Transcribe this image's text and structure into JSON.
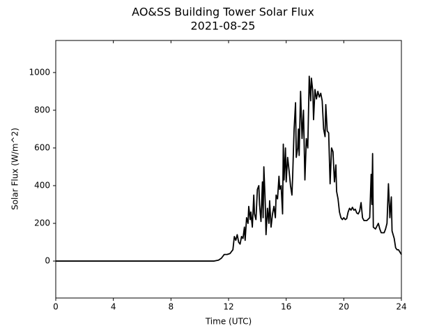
{
  "chart_data": {
    "type": "line",
    "title": "AO&SS Building Tower Solar Flux",
    "subtitle": "2021-08-25",
    "x_label": "Time (UTC)",
    "y_label": "Solar Flux (W/m^2)",
    "xlim": [
      0,
      24
    ],
    "xticks": [
      0,
      4,
      8,
      12,
      16,
      20,
      24
    ],
    "ylim": [
      -196,
      1170
    ],
    "yticks": [
      0,
      200,
      400,
      600,
      800,
      1000
    ],
    "grid": false,
    "series": [
      {
        "color": "#000000",
        "x": [
          0,
          11.0,
          11.3,
          11.5,
          11.7,
          11.9,
          12.1,
          12.3,
          12.4,
          12.5,
          12.6,
          12.7,
          12.8,
          12.9,
          13.0,
          13.1,
          13.15,
          13.25,
          13.35,
          13.4,
          13.5,
          13.55,
          13.65,
          13.75,
          13.8,
          13.9,
          14.0,
          14.1,
          14.15,
          14.25,
          14.35,
          14.4,
          14.45,
          14.55,
          14.6,
          14.7,
          14.8,
          14.85,
          14.95,
          15.05,
          15.15,
          15.25,
          15.3,
          15.4,
          15.5,
          15.55,
          15.65,
          15.75,
          15.8,
          15.85,
          15.95,
          16.0,
          16.1,
          16.2,
          16.3,
          16.4,
          16.45,
          16.55,
          16.65,
          16.7,
          16.8,
          16.85,
          16.9,
          17.0,
          17.1,
          17.2,
          17.3,
          17.4,
          17.5,
          17.6,
          17.7,
          17.75,
          17.85,
          17.9,
          18.0,
          18.1,
          18.2,
          18.3,
          18.4,
          18.5,
          18.6,
          18.7,
          18.75,
          18.85,
          18.95,
          19.05,
          19.15,
          19.25,
          19.35,
          19.45,
          19.5,
          19.6,
          19.7,
          19.8,
          19.9,
          20.0,
          20.1,
          20.2,
          20.3,
          20.4,
          20.5,
          20.6,
          20.7,
          20.8,
          20.9,
          21.0,
          21.1,
          21.2,
          21.3,
          21.4,
          21.6,
          21.8,
          21.9,
          21.95,
          22.0,
          22.05,
          22.2,
          22.4,
          22.5,
          22.6,
          22.8,
          22.9,
          23.0,
          23.1,
          23.2,
          23.3,
          23.35,
          23.5,
          23.6,
          23.7,
          23.8,
          24.0
        ],
        "values": [
          0,
          0,
          5,
          15,
          35,
          35,
          40,
          60,
          130,
          110,
          140,
          100,
          90,
          130,
          120,
          180,
          110,
          230,
          200,
          290,
          220,
          260,
          180,
          350,
          250,
          220,
          380,
          400,
          300,
          210,
          420,
          230,
          500,
          300,
          140,
          280,
          200,
          320,
          180,
          250,
          290,
          230,
          350,
          330,
          450,
          380,
          400,
          250,
          620,
          430,
          600,
          420,
          550,
          480,
          400,
          350,
          450,
          700,
          840,
          550,
          600,
          700,
          560,
          900,
          650,
          800,
          430,
          650,
          600,
          980,
          850,
          970,
          900,
          750,
          910,
          860,
          900,
          870,
          890,
          850,
          700,
          660,
          830,
          690,
          680,
          410,
          600,
          580,
          420,
          510,
          370,
          330,
          260,
          230,
          220,
          230,
          220,
          225,
          260,
          280,
          270,
          285,
          270,
          275,
          255,
          250,
          265,
          310,
          230,
          215,
          215,
          230,
          460,
          300,
          570,
          180,
          170,
          200,
          170,
          150,
          150,
          170,
          200,
          410,
          230,
          340,
          160,
          120,
          70,
          60,
          60,
          35
        ]
      }
    ]
  }
}
